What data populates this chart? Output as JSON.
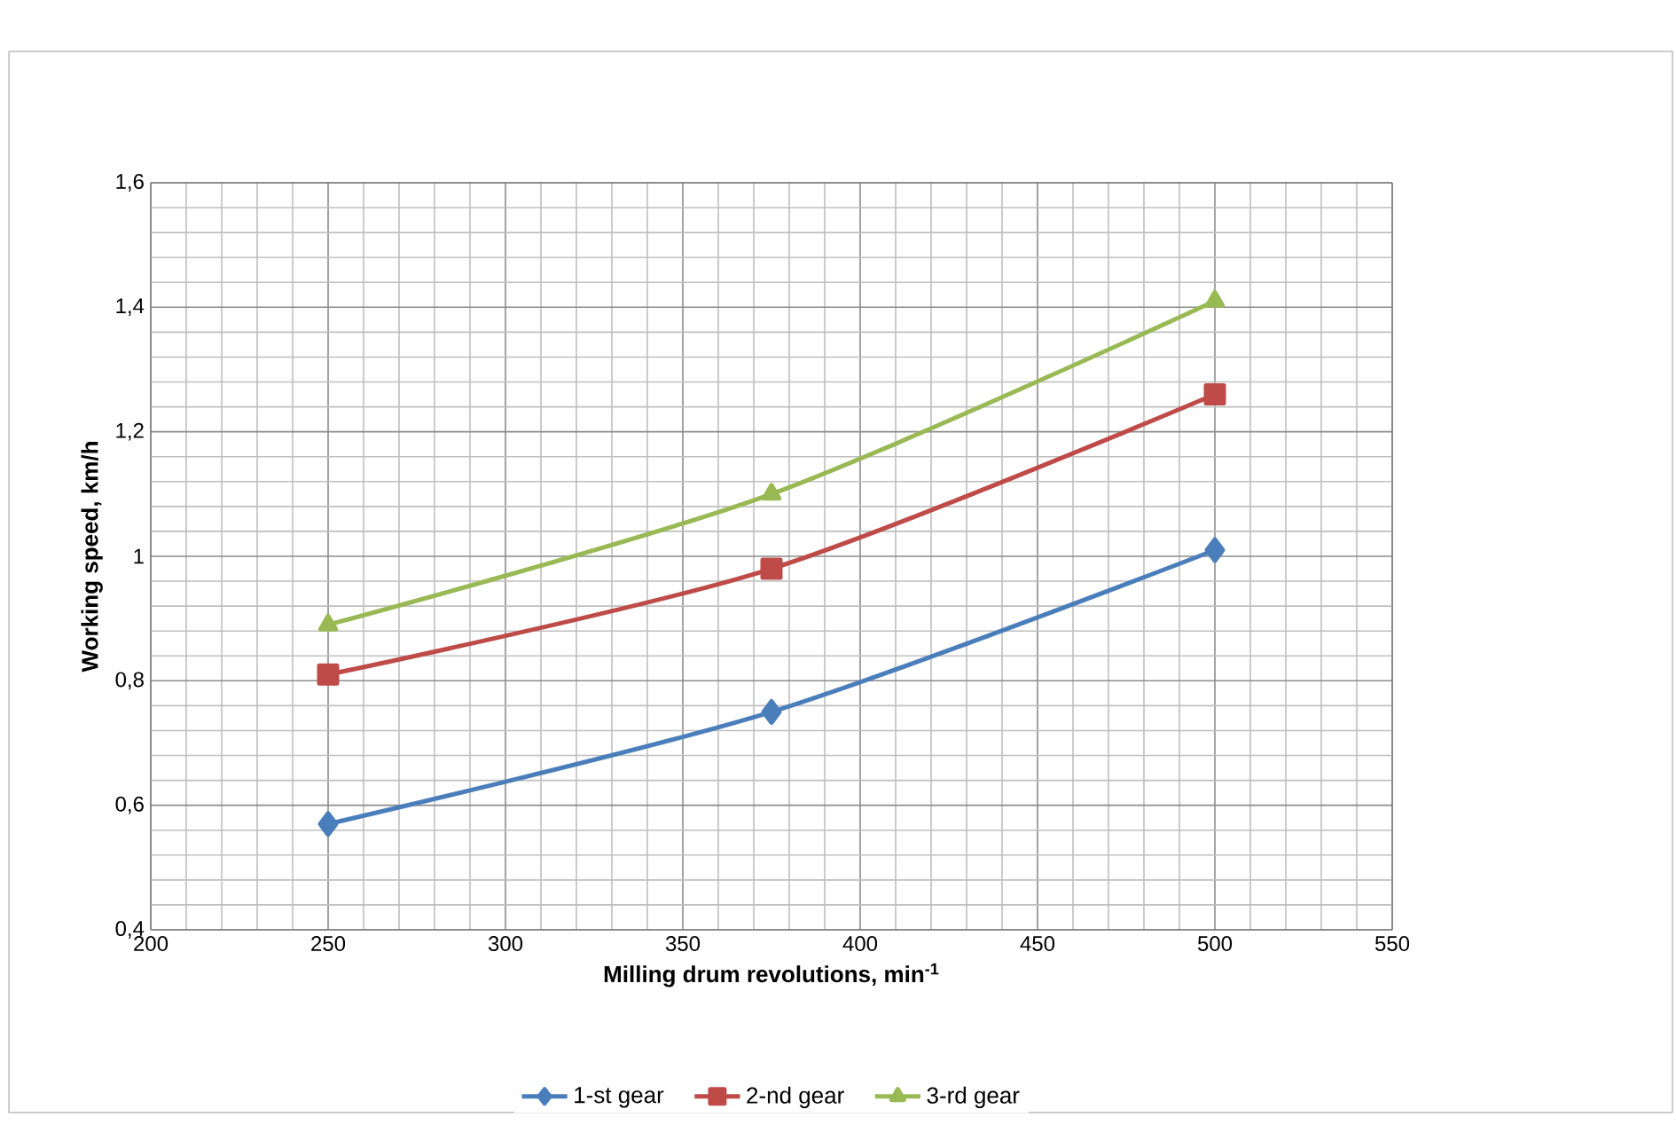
{
  "chart_data": {
    "type": "line",
    "xlabel": "Milling drum revolutions, min$^{-1}$",
    "ylabel": "Working speed, km/h",
    "xlim": [
      200,
      550
    ],
    "xticks": [
      200,
      250,
      300,
      350,
      400,
      450,
      500,
      550
    ],
    "ylim": [
      0.4,
      1.6
    ],
    "yticks": [
      {
        "value": 0.4,
        "label": "0,4"
      },
      {
        "value": 0.6,
        "label": "0,6"
      },
      {
        "value": 0.8,
        "label": "0,8"
      },
      {
        "value": 1,
        "label": "1"
      },
      {
        "value": 1.2,
        "label": "1,2"
      },
      {
        "value": 1.4,
        "label": "1,4"
      },
      {
        "value": 1.6,
        "label": "1,6"
      }
    ],
    "x": [
      250,
      375,
      500
    ],
    "grid": true,
    "legend": "bottom",
    "line_style": "solid",
    "series": [
      {
        "name": "1-st gear",
        "color": "#4a7ebb",
        "marker": "diamond",
        "values": [
          0.57,
          0.75,
          1.01
        ]
      },
      {
        "name": "2-nd gear",
        "color": "#be4b48",
        "marker": "square",
        "values": [
          0.81,
          0.98,
          1.26
        ]
      },
      {
        "name": "3-rd gear",
        "color": "#98b954",
        "marker": "triangle",
        "values": [
          0.89,
          1.1,
          1.41
        ]
      }
    ]
  }
}
